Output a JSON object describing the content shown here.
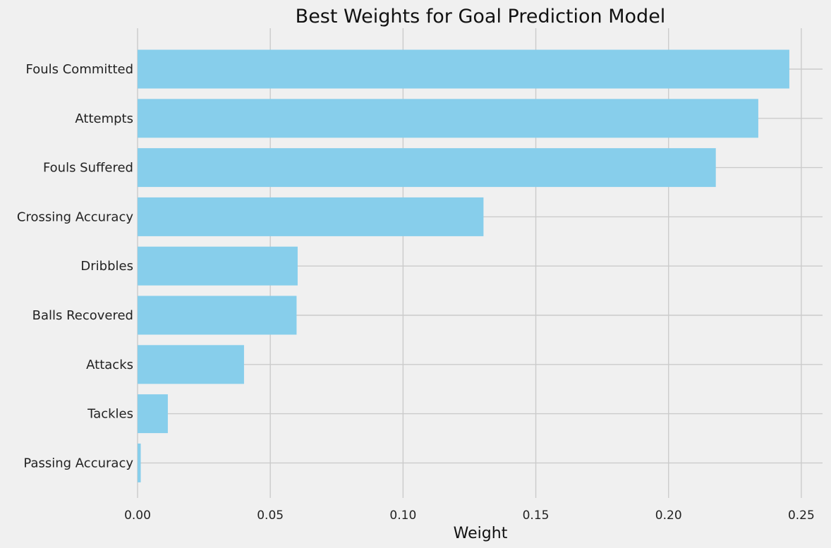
{
  "chart_data": {
    "type": "bar",
    "orientation": "horizontal",
    "title": "Best Weights for Goal Prediction Model",
    "xlabel": "Weight",
    "ylabel": "",
    "categories": [
      "Fouls Committed",
      "Attempts",
      "Fouls Suffered",
      "Crossing Accuracy",
      "Dribbles",
      "Balls Recovered",
      "Attacks",
      "Tackles",
      "Passing Accuracy"
    ],
    "values": [
      0.2455,
      0.2338,
      0.2178,
      0.1303,
      0.0603,
      0.0599,
      0.0401,
      0.0114,
      0.0012
    ],
    "xlim": [
      0.0,
      0.258
    ],
    "x_ticks": [
      0.0,
      0.05,
      0.1,
      0.15,
      0.2,
      0.25
    ],
    "x_tick_labels": [
      "0.00",
      "0.05",
      "0.10",
      "0.15",
      "0.20",
      "0.25"
    ],
    "grid": true,
    "bar_color": "#87ceeb",
    "background_color": "#f0f0f0"
  }
}
